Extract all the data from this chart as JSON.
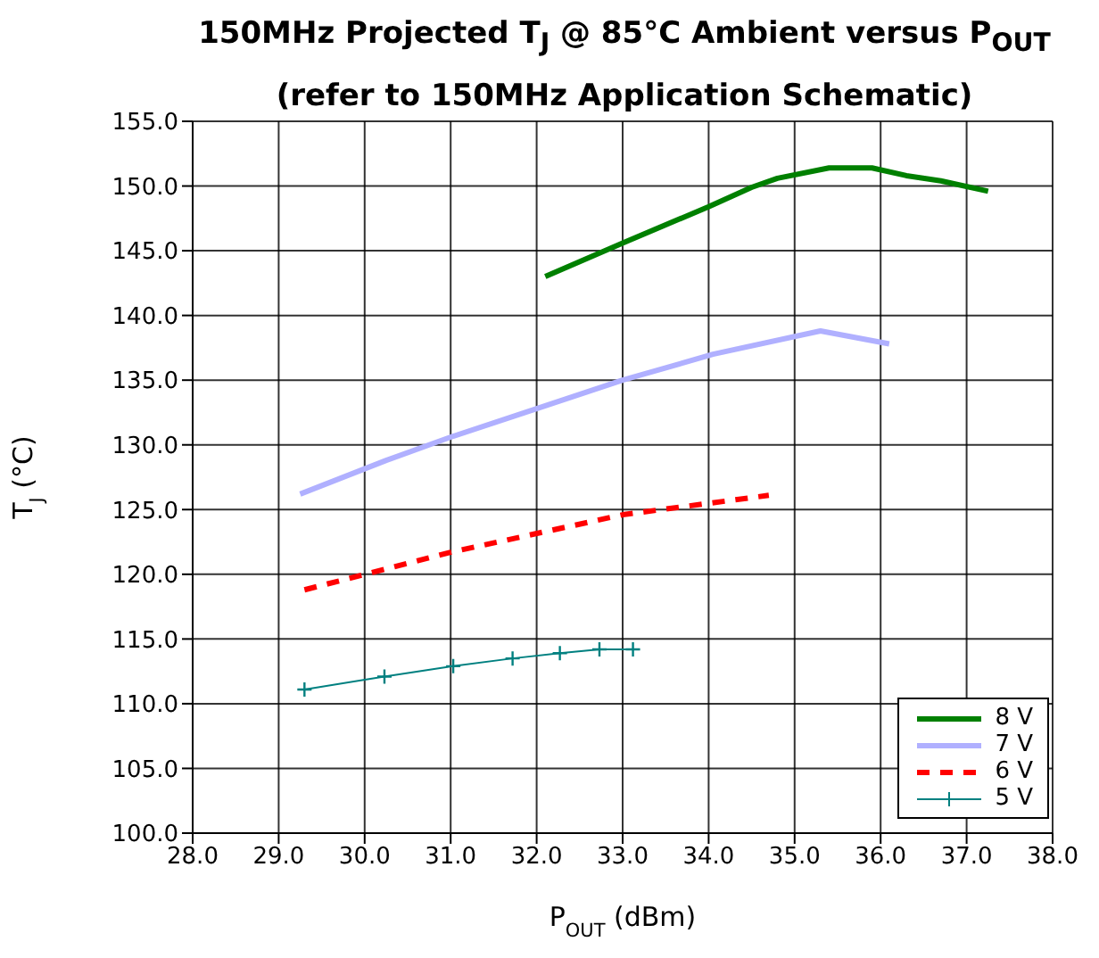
{
  "chart_data": {
    "type": "line",
    "title": "150MHz Projected T$_{J}$ @ 85°C Ambient versus P$_{OUT}$ (refer to 150MHz Application Schematic)",
    "xlabel": "P$_{OUT}$ (dBm)",
    "ylabel": "T$_{J}$ (°C)",
    "xlim": [
      28,
      38
    ],
    "ylim": [
      100,
      155
    ],
    "xticks": [
      {
        "value": 28,
        "label": "28.0"
      },
      {
        "value": 29,
        "label": "29.0"
      },
      {
        "value": 30,
        "label": "30.0"
      },
      {
        "value": 31,
        "label": "31.0"
      },
      {
        "value": 32,
        "label": "32.0"
      },
      {
        "value": 33,
        "label": "33.0"
      },
      {
        "value": 34,
        "label": "34.0"
      },
      {
        "value": 35,
        "label": "35.0"
      },
      {
        "value": 36,
        "label": "36.0"
      },
      {
        "value": 37,
        "label": "37.0"
      },
      {
        "value": 38,
        "label": "38.0"
      }
    ],
    "yticks": [
      {
        "value": 100,
        "label": "100.0"
      },
      {
        "value": 105,
        "label": "105.0"
      },
      {
        "value": 110,
        "label": "110.0"
      },
      {
        "value": 115,
        "label": "115.0"
      },
      {
        "value": 120,
        "label": "120.0"
      },
      {
        "value": 125,
        "label": "125.0"
      },
      {
        "value": 130,
        "label": "130.0"
      },
      {
        "value": 135,
        "label": "135.0"
      },
      {
        "value": 140,
        "label": "140.0"
      },
      {
        "value": 145,
        "label": "145.0"
      },
      {
        "value": 150,
        "label": "150.0"
      },
      {
        "value": 155,
        "label": "155.0"
      }
    ],
    "grid": true,
    "legend": "bottom right",
    "series": [
      {
        "name": "8 V",
        "color": "#008000",
        "marker": "none",
        "line_style": "solid",
        "x": [
          32.1,
          33.0,
          34.0,
          34.5,
          34.8,
          35.4,
          35.9,
          36.3,
          36.7,
          37.25
        ],
        "values": [
          143.0,
          145.6,
          148.4,
          149.9,
          150.6,
          151.4,
          151.4,
          150.8,
          150.4,
          149.6
        ]
      },
      {
        "name": "7 V",
        "color": "#b0b0ff",
        "marker": "none",
        "line_style": "solid",
        "x": [
          29.25,
          30.25,
          31.0,
          32.0,
          33.0,
          34.05,
          35.3,
          36.1
        ],
        "values": [
          126.2,
          128.8,
          130.6,
          132.8,
          135.0,
          137.0,
          138.8,
          137.8
        ]
      },
      {
        "name": "6 V",
        "color": "#ff0000",
        "marker": "none",
        "line_style": "dashed",
        "x": [
          29.3,
          31.0,
          33.0,
          34.7
        ],
        "values": [
          118.8,
          121.7,
          124.6,
          126.1
        ]
      },
      {
        "name": "5 V",
        "color": "#008080",
        "marker": "cross",
        "line_style": "solid",
        "x": [
          29.3,
          30.23,
          31.03,
          31.72,
          32.27,
          32.73,
          33.12
        ],
        "values": [
          111.1,
          112.1,
          112.9,
          113.5,
          113.9,
          114.2,
          114.2
        ]
      }
    ]
  }
}
